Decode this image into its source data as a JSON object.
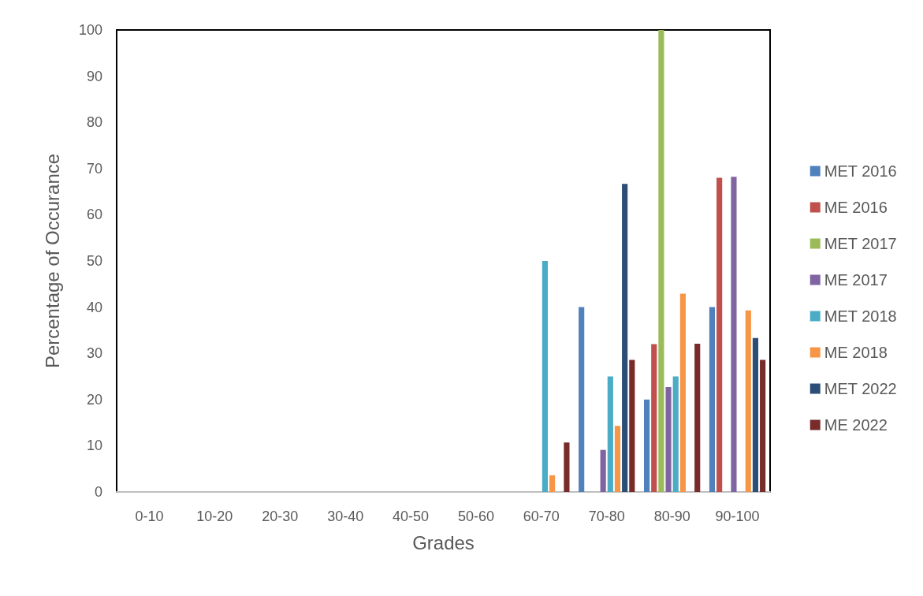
{
  "chart_data": {
    "type": "bar",
    "xlabel": "Grades",
    "ylabel": "Percentage of Occurance",
    "categories": [
      "0-10",
      "10-20",
      "20-30",
      "30-40",
      "40-50",
      "50-60",
      "60-70",
      "70-80",
      "80-90",
      "90-100"
    ],
    "series": [
      {
        "name": "MET 2016",
        "color": "#4f81bd",
        "values": [
          0,
          0,
          0,
          0,
          0,
          0,
          0,
          40,
          20,
          40
        ]
      },
      {
        "name": "ME 2016",
        "color": "#c0504d",
        "values": [
          0,
          0,
          0,
          0,
          0,
          0,
          0,
          0,
          32,
          68
        ]
      },
      {
        "name": "MET 2017",
        "color": "#9bbb59",
        "values": [
          0,
          0,
          0,
          0,
          0,
          0,
          0,
          0,
          100,
          0
        ]
      },
      {
        "name": "ME 2017",
        "color": "#8064a2",
        "values": [
          0,
          0,
          0,
          0,
          0,
          0,
          0,
          9.1,
          22.7,
          68.2
        ]
      },
      {
        "name": "MET 2018",
        "color": "#4bacc6",
        "values": [
          0,
          0,
          0,
          0,
          0,
          0,
          50,
          25,
          25,
          0
        ]
      },
      {
        "name": "ME 2018",
        "color": "#f79646",
        "values": [
          0,
          0,
          0,
          0,
          0,
          0,
          3.6,
          14.3,
          42.9,
          39.3
        ]
      },
      {
        "name": "MET 2022",
        "color": "#2c4d75",
        "values": [
          0,
          0,
          0,
          0,
          0,
          0,
          0,
          66.7,
          0,
          33.3
        ]
      },
      {
        "name": "ME 2022",
        "color": "#772c2a",
        "values": [
          0,
          0,
          0,
          0,
          0,
          0,
          10.7,
          28.6,
          32.1,
          28.6
        ]
      }
    ],
    "ylim": [
      0,
      100
    ],
    "yticks": [
      0,
      10,
      20,
      30,
      40,
      50,
      60,
      70,
      80,
      90,
      100
    ],
    "grid": false,
    "legend": "right"
  }
}
